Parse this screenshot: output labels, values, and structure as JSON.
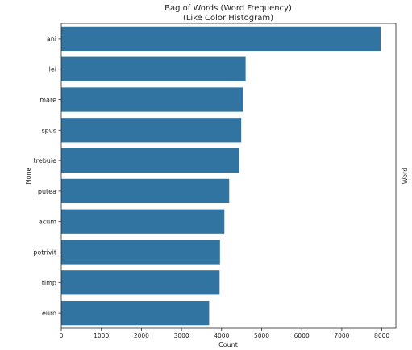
{
  "chart_data": {
    "type": "bar",
    "orientation": "horizontal",
    "title": "Bag of Words (Word Frequency)",
    "subtitle": "(Like Color Histogram)",
    "xlabel": "Count",
    "ylabel": "None",
    "ylabel_right": "Word",
    "categories": [
      "ani",
      "lei",
      "mare",
      "spus",
      "trebuie",
      "putea",
      "acum",
      "potrivit",
      "timp",
      "euro"
    ],
    "values": [
      7970,
      4600,
      4540,
      4490,
      4440,
      4190,
      4070,
      3960,
      3950,
      3690
    ],
    "xlim": [
      0,
      8350
    ],
    "xticks": [
      0,
      1000,
      2000,
      3000,
      4000,
      5000,
      6000,
      7000,
      8000
    ],
    "grid": false,
    "bar_color": "#3274a1"
  }
}
